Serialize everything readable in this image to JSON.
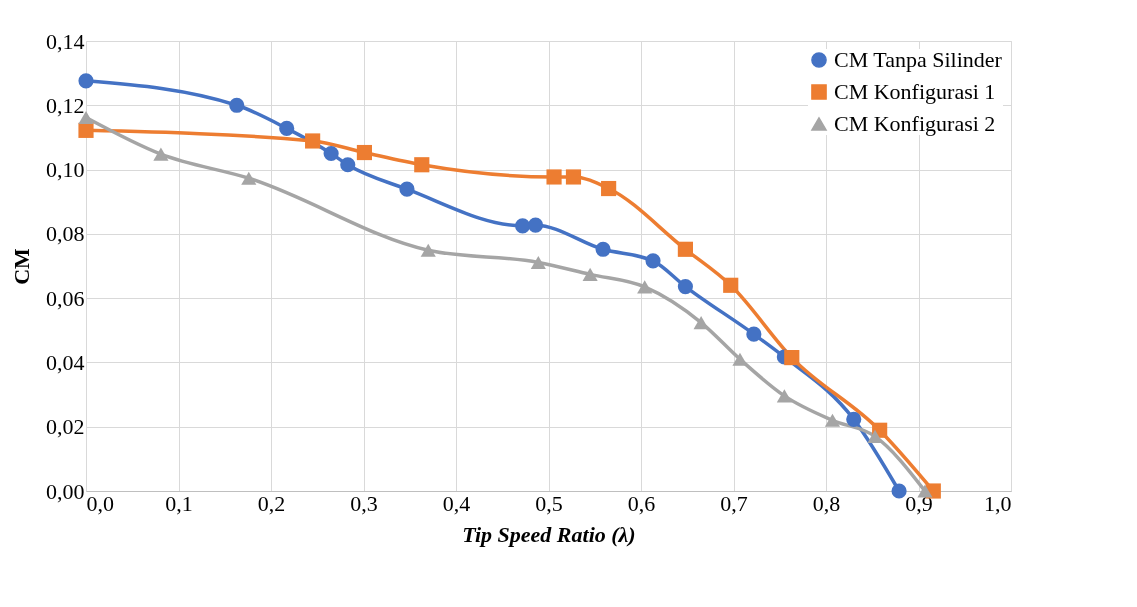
{
  "chart_data": {
    "type": "line",
    "xlabel": "Tip Speed Ratio (λ)",
    "ylabel": "CM",
    "xlim": [
      0,
      1.0
    ],
    "ylim": [
      0,
      0.14
    ],
    "xticks": [
      {
        "value": 0,
        "label": "0,0"
      },
      {
        "value": 0.1,
        "label": "0,1"
      },
      {
        "value": 0.2,
        "label": "0,2"
      },
      {
        "value": 0.3,
        "label": "0,3"
      },
      {
        "value": 0.4,
        "label": "0,4"
      },
      {
        "value": 0.5,
        "label": "0,5"
      },
      {
        "value": 0.6,
        "label": "0,6"
      },
      {
        "value": 0.7,
        "label": "0,7"
      },
      {
        "value": 0.8,
        "label": "0,8"
      },
      {
        "value": 0.9,
        "label": "0,9"
      },
      {
        "value": 1.0,
        "label": "1,0"
      }
    ],
    "yticks": [
      {
        "value": 0,
        "label": "0,00"
      },
      {
        "value": 0.02,
        "label": "0,02"
      },
      {
        "value": 0.04,
        "label": "0,04"
      },
      {
        "value": 0.06,
        "label": "0,06"
      },
      {
        "value": 0.08,
        "label": "0,08"
      },
      {
        "value": 0.1,
        "label": "0,10"
      },
      {
        "value": 0.12,
        "label": "0,12"
      },
      {
        "value": 0.14,
        "label": "0,14"
      }
    ],
    "grid": true,
    "legend": "top right",
    "line_style": "solid",
    "series": [
      {
        "name": "CM Tanpa Silinder",
        "color": "#4472c4",
        "marker": "circle",
        "x": [
          0,
          0.163,
          0.217,
          0.265,
          0.283,
          0.347,
          0.472,
          0.486,
          0.559,
          0.613,
          0.648,
          0.722,
          0.755,
          0.83,
          0.879
        ],
        "values": [
          0.1276,
          0.12,
          0.1128,
          0.105,
          0.1015,
          0.0939,
          0.0825,
          0.0827,
          0.0752,
          0.0716,
          0.0636,
          0.0488,
          0.0417,
          0.0223,
          0
        ]
      },
      {
        "name": "CM Konfigurasi 1",
        "color": "#ed7d31",
        "marker": "square",
        "x": [
          0,
          0.245,
          0.301,
          0.363,
          0.506,
          0.527,
          0.565,
          0.648,
          0.697,
          0.763,
          0.858,
          0.916
        ],
        "values": [
          0.1122,
          0.1089,
          0.1053,
          0.1015,
          0.0977,
          0.0977,
          0.0941,
          0.0752,
          0.064,
          0.0415,
          0.0189,
          0
        ]
      },
      {
        "name": "CM Konfigurasi 2",
        "color": "#a5a5a5",
        "marker": "triangle",
        "x": [
          0,
          0.081,
          0.176,
          0.37,
          0.489,
          0.545,
          0.604,
          0.665,
          0.707,
          0.755,
          0.807,
          0.853,
          0.907
        ],
        "values": [
          0.1162,
          0.1048,
          0.0973,
          0.0749,
          0.0711,
          0.0674,
          0.0635,
          0.0524,
          0.041,
          0.0296,
          0.022,
          0.017,
          0
        ]
      }
    ]
  }
}
